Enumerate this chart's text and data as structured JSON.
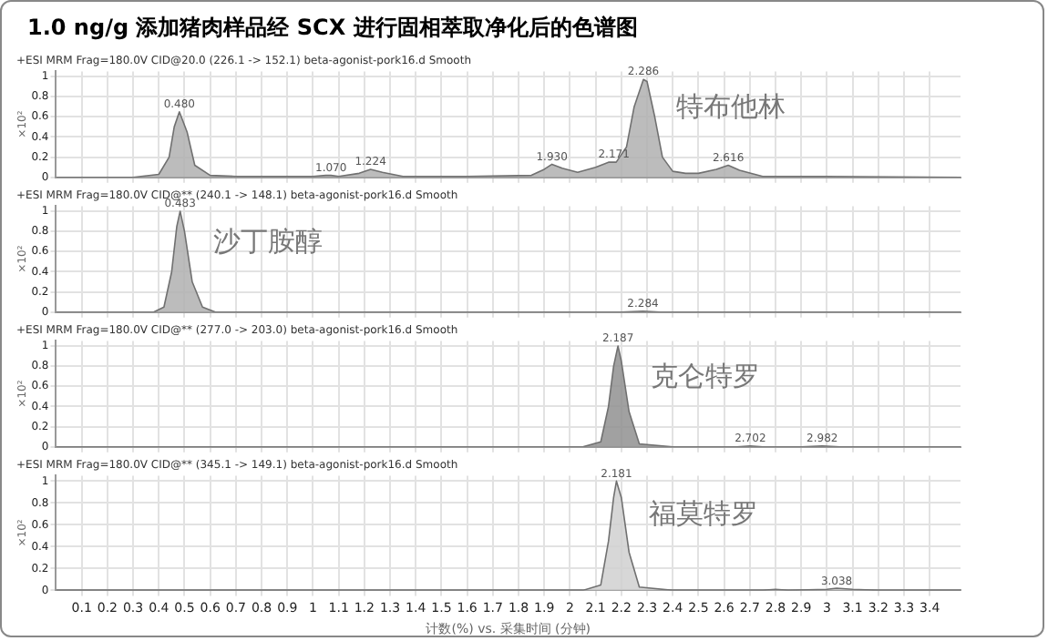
{
  "chart_data": [
    {
      "type": "area",
      "title": "1.0 ng/g 添加猪肉样品经 SCX 进行固相萃取净化后的色谱图",
      "subtitle": "+ESI MRM Frag=180.0V CID@20.0 (226.1 -> 152.1) beta-agonist-pork16.d Smooth",
      "ylabel": "×10²",
      "series": [
        {
          "color": "#b0b0b0",
          "x": [
            0,
            0.3,
            0.4,
            0.44,
            0.46,
            0.48,
            0.51,
            0.54,
            0.6,
            0.7,
            1.0,
            1.05,
            1.07,
            1.1,
            1.18,
            1.224,
            1.27,
            1.35,
            1.6,
            1.85,
            1.9,
            1.93,
            1.97,
            2.03,
            2.1,
            2.15,
            2.18,
            2.22,
            2.25,
            2.286,
            2.3,
            2.33,
            2.36,
            2.4,
            2.45,
            2.5,
            2.57,
            2.616,
            2.66,
            2.75,
            3.0,
            3.52
          ],
          "values": [
            0,
            0,
            0.03,
            0.2,
            0.5,
            0.65,
            0.45,
            0.12,
            0.02,
            0.01,
            0.01,
            0.02,
            0.02,
            0.01,
            0.04,
            0.08,
            0.05,
            0.01,
            0.01,
            0.02,
            0.08,
            0.13,
            0.09,
            0.05,
            0.1,
            0.15,
            0.15,
            0.3,
            0.7,
            0.97,
            0.95,
            0.6,
            0.2,
            0.06,
            0.04,
            0.04,
            0.08,
            0.12,
            0.07,
            0.01,
            0.01,
            0
          ]
        }
      ],
      "annotations": [
        "特布他林",
        {
          "text": "0.480",
          "x": 0.48,
          "y": 0.65
        },
        {
          "text": "1.070",
          "x": 1.07,
          "y": 0.02
        },
        {
          "text": "1.224",
          "x": 1.224,
          "y": 0.08
        },
        {
          "text": "1.930",
          "x": 1.93,
          "y": 0.13
        },
        {
          "text": "2.171",
          "x": 2.171,
          "y": 0.15
        },
        {
          "text": "2.286",
          "x": 2.286,
          "y": 0.97
        },
        {
          "text": "2.616",
          "x": 2.616,
          "y": 0.12
        }
      ],
      "xlim": [
        0,
        3.52
      ],
      "xticks": [
        0.1,
        0.2,
        0.3,
        0.4,
        0.5,
        0.6,
        0.7,
        0.8,
        0.9,
        1,
        1.1,
        1.2,
        1.3,
        1.4,
        1.5,
        1.6,
        1.7,
        1.8,
        1.9,
        2,
        2.1,
        2.2,
        2.3,
        2.4,
        2.5,
        2.6,
        2.7,
        2.8,
        2.9,
        3,
        3.1,
        3.2,
        3.3,
        3.4
      ],
      "ylim": [
        0,
        1.05
      ],
      "yticks": [
        0,
        0.2,
        0.4,
        0.6,
        0.8,
        1
      ],
      "grid": true,
      "tick_labels": "y"
    },
    {
      "type": "area",
      "subtitle": "+ESI MRM Frag=180.0V CID@** (240.1 -> 148.1) beta-agonist-pork16.d Smooth",
      "ylabel": "×10²",
      "series": [
        {
          "color": "#b0b0b0",
          "x": [
            0,
            0.38,
            0.42,
            0.45,
            0.47,
            0.483,
            0.5,
            0.53,
            0.57,
            0.62,
            2.1,
            2.2,
            2.284,
            2.35,
            3.52
          ],
          "values": [
            0,
            0,
            0.05,
            0.4,
            0.85,
            1.0,
            0.8,
            0.3,
            0.05,
            0,
            0,
            0,
            0.01,
            0,
            0
          ]
        }
      ],
      "annotations": [
        "沙丁胺醇",
        {
          "text": "0.483",
          "x": 0.483,
          "y": 1.0
        },
        {
          "text": "2.284",
          "x": 2.284,
          "y": 0.01
        }
      ],
      "xlim": [
        0,
        3.52
      ],
      "xticks": [
        0.1,
        0.2,
        0.3,
        0.4,
        0.5,
        0.6,
        0.7,
        0.8,
        0.9,
        1,
        1.1,
        1.2,
        1.3,
        1.4,
        1.5,
        1.6,
        1.7,
        1.8,
        1.9,
        2,
        2.1,
        2.2,
        2.3,
        2.4,
        2.5,
        2.6,
        2.7,
        2.8,
        2.9,
        3,
        3.1,
        3.2,
        3.3,
        3.4
      ],
      "ylim": [
        0,
        1.05
      ],
      "yticks": [
        0,
        0.2,
        0.4,
        0.6,
        0.8,
        1
      ],
      "grid": true,
      "tick_labels": "y"
    },
    {
      "type": "area",
      "subtitle": "+ESI MRM Frag=180.0V CID@** (277.0 -> 203.0) beta-agonist-pork16.d Smooth",
      "ylabel": "×10²",
      "series": [
        {
          "color": "#909090",
          "x": [
            0,
            2.05,
            2.12,
            2.15,
            2.17,
            2.187,
            2.2,
            2.23,
            2.27,
            2.4,
            2.65,
            2.702,
            2.75,
            2.9,
            2.982,
            3.05,
            3.2,
            3.52
          ],
          "values": [
            0,
            0,
            0.05,
            0.4,
            0.8,
            1.0,
            0.85,
            0.35,
            0.03,
            0,
            0,
            0.01,
            0,
            0,
            0.01,
            0,
            0,
            0
          ]
        }
      ],
      "annotations": [
        "克仑特罗",
        {
          "text": "2.187",
          "x": 2.187,
          "y": 1.0
        },
        {
          "text": "2.702",
          "x": 2.702,
          "y": 0.01
        },
        {
          "text": "2.982",
          "x": 2.982,
          "y": 0.01
        }
      ],
      "xlim": [
        0,
        3.52
      ],
      "xticks": [
        0.1,
        0.2,
        0.3,
        0.4,
        0.5,
        0.6,
        0.7,
        0.8,
        0.9,
        1,
        1.1,
        1.2,
        1.3,
        1.4,
        1.5,
        1.6,
        1.7,
        1.8,
        1.9,
        2,
        2.1,
        2.2,
        2.3,
        2.4,
        2.5,
        2.6,
        2.7,
        2.8,
        2.9,
        3,
        3.1,
        3.2,
        3.3,
        3.4
      ],
      "ylim": [
        0,
        1.05
      ],
      "yticks": [
        0,
        0.2,
        0.4,
        0.6,
        0.8,
        1
      ],
      "grid": true,
      "tick_labels": "y"
    },
    {
      "type": "area",
      "subtitle": "+ESI MRM Frag=180.0V CID@** (345.1 -> 149.1) beta-agonist-pork16.d Smooth",
      "ylabel": "×10²",
      "xlabel": "计数(%) vs. 采集时间 (分钟)",
      "series": [
        {
          "color": "#d0d0d0",
          "x": [
            0,
            2.05,
            2.12,
            2.15,
            2.17,
            2.181,
            2.2,
            2.23,
            2.27,
            2.4,
            2.75,
            2.8,
            2.85,
            3.0,
            3.038,
            3.1,
            3.2,
            3.52
          ],
          "values": [
            0,
            0,
            0.05,
            0.45,
            0.85,
            1.0,
            0.85,
            0.35,
            0.03,
            0,
            0,
            0.01,
            0,
            0.01,
            0.02,
            0.01,
            0,
            0
          ]
        }
      ],
      "annotations": [
        "福莫特罗",
        {
          "text": "2.181",
          "x": 2.181,
          "y": 1.0
        },
        {
          "text": "3.038",
          "x": 3.038,
          "y": 0.015
        }
      ],
      "xlim": [
        0,
        3.52
      ],
      "xticks": [
        0.1,
        0.2,
        0.3,
        0.4,
        0.5,
        0.6,
        0.7,
        0.8,
        0.9,
        1,
        1.1,
        1.2,
        1.3,
        1.4,
        1.5,
        1.6,
        1.7,
        1.8,
        1.9,
        2,
        2.1,
        2.2,
        2.3,
        2.4,
        2.5,
        2.6,
        2.7,
        2.8,
        2.9,
        3,
        3.1,
        3.2,
        3.3,
        3.4
      ],
      "ylim": [
        0,
        1.05
      ],
      "yticks": [
        0,
        0.2,
        0.4,
        0.6,
        0.8,
        1
      ],
      "grid": true
    }
  ]
}
